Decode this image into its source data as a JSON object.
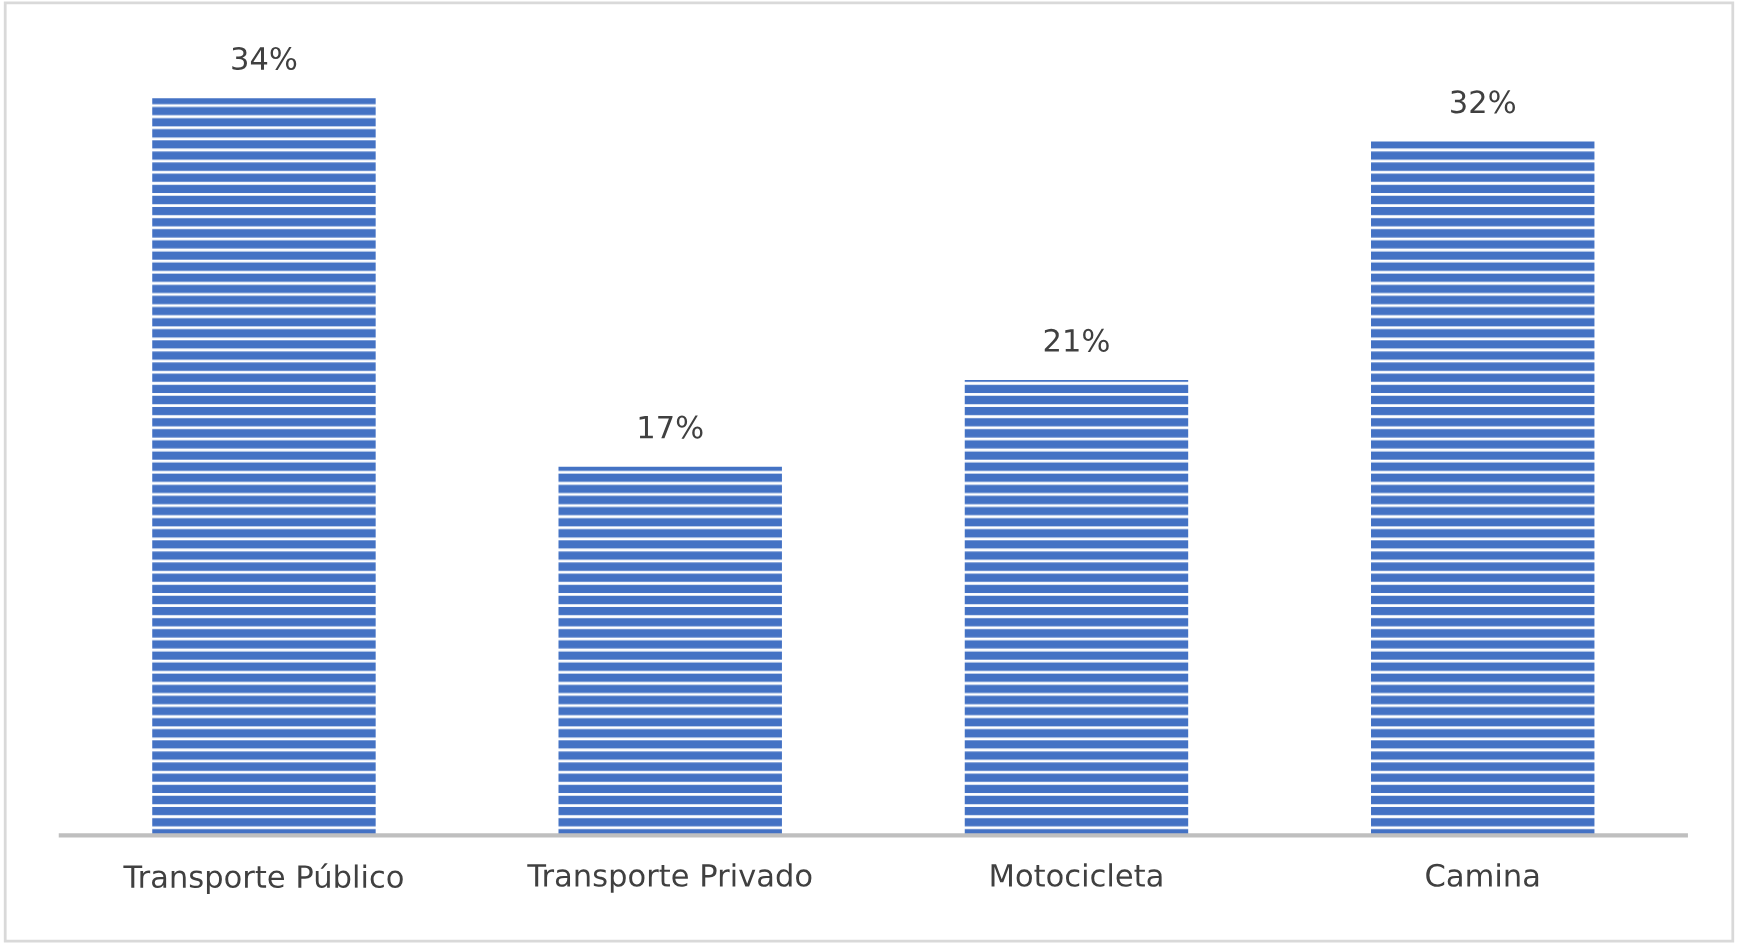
{
  "chart_data": {
    "type": "bar",
    "categories": [
      "Transporte Público",
      "Transporte Privado",
      "Motocicleta",
      "Camina"
    ],
    "values": [
      34,
      17,
      21,
      32
    ],
    "value_labels": [
      "34%",
      "17%",
      "21%",
      "32%"
    ],
    "color": "#4472c4",
    "tick_labels": "x",
    "grid": false,
    "legend": false
  }
}
